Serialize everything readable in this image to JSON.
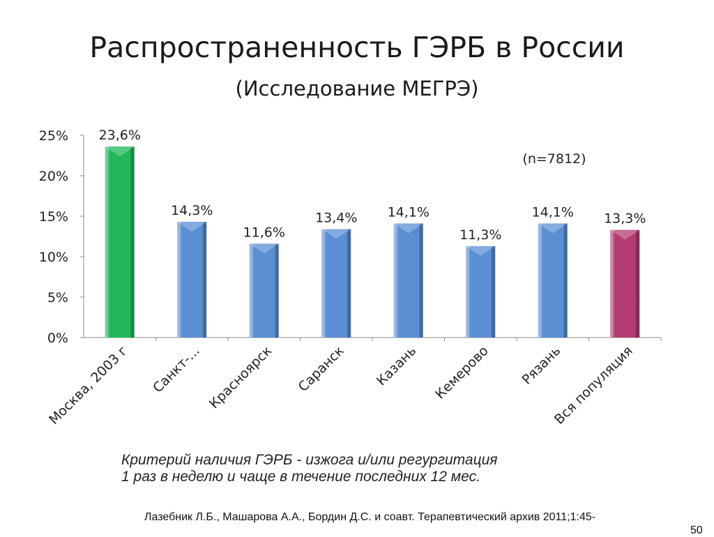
{
  "chart_data": {
    "type": "bar",
    "title": "Распространенность ГЭРБ в России",
    "subtitle": "(Исследование МЕГРЭ)",
    "annotation": "(n=7812)",
    "categories": [
      "Москва, 2003 г",
      "Санкт-...",
      "Красноярск",
      "Саранск",
      "Казань",
      "Кемерово",
      "Рязань",
      "Вся популяция"
    ],
    "values": [
      23.6,
      14.3,
      11.6,
      13.4,
      14.1,
      11.3,
      14.1,
      13.3
    ],
    "data_labels": [
      "23,6%",
      "14,3%",
      "11,6%",
      "13,4%",
      "14,1%",
      "11,3%",
      "14,1%",
      "13,3%"
    ],
    "colors": [
      "#22b85a",
      "#5b8fd4",
      "#5b8fd4",
      "#5b8fd4",
      "#5b8fd4",
      "#5b8fd4",
      "#5b8fd4",
      "#b33c72"
    ],
    "yticks": [
      "0%",
      "5%",
      "10%",
      "15%",
      "20%",
      "25%"
    ],
    "ylim": [
      0,
      25
    ],
    "xlabel": "",
    "ylabel": "",
    "grid": false
  },
  "footer": {
    "criterion_line1": "Критерий наличия ГЭРБ - изжога и/или регургитация",
    "criterion_line2": "1 раз в неделю и чаще в течение последних 12 мес.",
    "citation": "Лазебник Л.Б., Машарова А.А., Бордин Д.С. и соавт. Терапевтический архив 2011;1:45-",
    "citation_cont": "50"
  }
}
